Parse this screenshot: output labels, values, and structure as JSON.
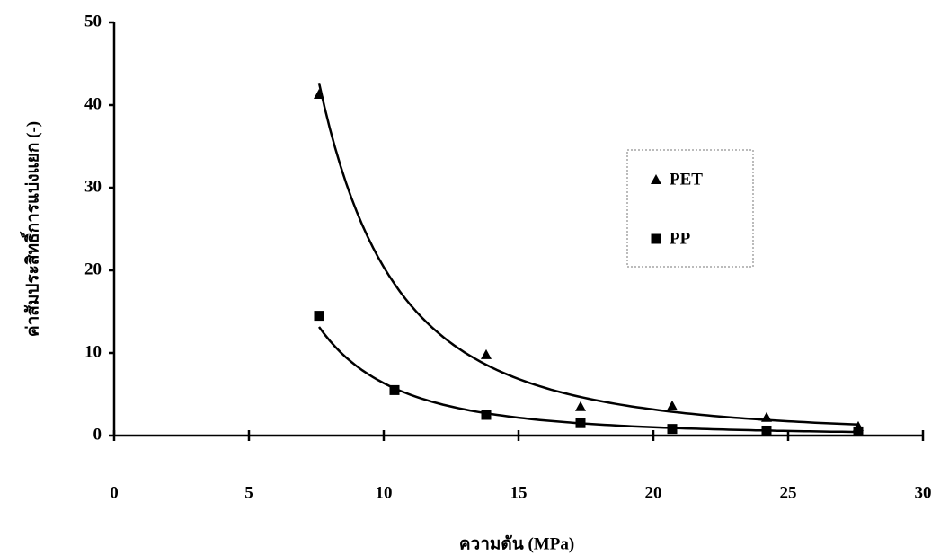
{
  "chart_data": {
    "type": "scatter",
    "x_label": "ความดัน (MPa)",
    "y_label": "ค่าสัมประสิทธิ์การแบ่งแยก (-)",
    "xlim": [
      0,
      30
    ],
    "xticks": [
      0,
      5,
      10,
      15,
      20,
      25,
      30
    ],
    "ylim": [
      0,
      50
    ],
    "yticks": [
      0,
      10,
      20,
      30,
      40,
      50
    ],
    "trendline": "power",
    "series": [
      {
        "name": "PET",
        "marker": "triangle",
        "color": "#000000",
        "x": [
          7.6,
          13.8,
          17.3,
          20.7,
          24.2,
          27.6
        ],
        "values": [
          41.3,
          9.8,
          3.5,
          3.6,
          2.2,
          1.1
        ]
      },
      {
        "name": "PP",
        "marker": "square",
        "color": "#000000",
        "x": [
          7.6,
          10.4,
          13.8,
          17.3,
          20.7,
          24.2,
          27.6
        ],
        "values": [
          14.5,
          5.5,
          2.5,
          1.5,
          0.8,
          0.6,
          0.5
        ]
      }
    ]
  }
}
